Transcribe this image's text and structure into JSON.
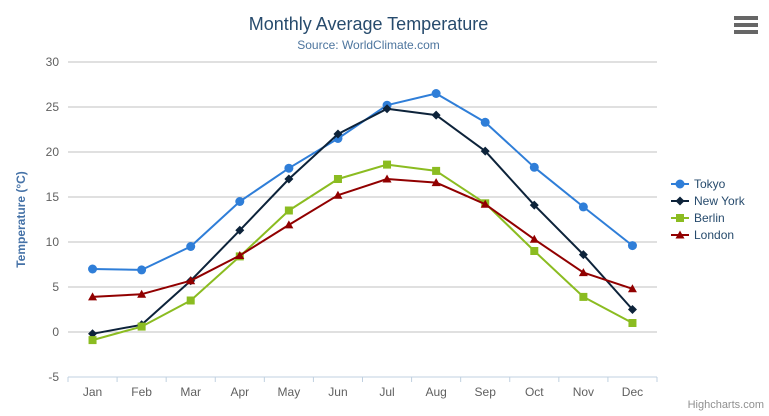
{
  "chart_data": {
    "type": "line",
    "title": "Monthly Average Temperature",
    "subtitle": "Source: WorldClimate.com",
    "categories": [
      "Jan",
      "Feb",
      "Mar",
      "Apr",
      "May",
      "Jun",
      "Jul",
      "Aug",
      "Sep",
      "Oct",
      "Nov",
      "Dec"
    ],
    "xlabel": "",
    "ylabel": "Temperature (°C)",
    "ylim": [
      -5,
      30
    ],
    "ytick_interval": 5,
    "grid": true,
    "legend_position": "right-middle-vertical",
    "series": [
      {
        "name": "Tokyo",
        "color": "#2f7ed8",
        "marker": "circle",
        "values": [
          7.0,
          6.9,
          9.5,
          14.5,
          18.2,
          21.5,
          25.2,
          26.5,
          23.3,
          18.3,
          13.9,
          9.6
        ]
      },
      {
        "name": "New York",
        "color": "#0d233a",
        "marker": "diamond",
        "values": [
          -0.2,
          0.8,
          5.7,
          11.3,
          17.0,
          22.0,
          24.8,
          24.1,
          20.1,
          14.1,
          8.6,
          2.5
        ]
      },
      {
        "name": "Berlin",
        "color": "#8bbc21",
        "marker": "square",
        "values": [
          -0.9,
          0.6,
          3.5,
          8.4,
          13.5,
          17.0,
          18.6,
          17.9,
          14.3,
          9.0,
          3.9,
          1.0
        ]
      },
      {
        "name": "London",
        "color": "#910000",
        "marker": "triangle",
        "values": [
          3.9,
          4.2,
          5.7,
          8.5,
          11.9,
          15.2,
          17.0,
          16.6,
          14.2,
          10.3,
          6.6,
          4.8
        ]
      }
    ]
  },
  "credits": "Highcharts.com",
  "colors": {
    "title": "#274b6d",
    "subtitle": "#4d759e",
    "grid": "#c0c0c0",
    "axis_line": "#c0d0e0",
    "tick_label": "#606060",
    "axis_title": "#4572a7",
    "legend_text": "#274b6d",
    "credit": "#909090",
    "menu_icon": "#666666"
  }
}
